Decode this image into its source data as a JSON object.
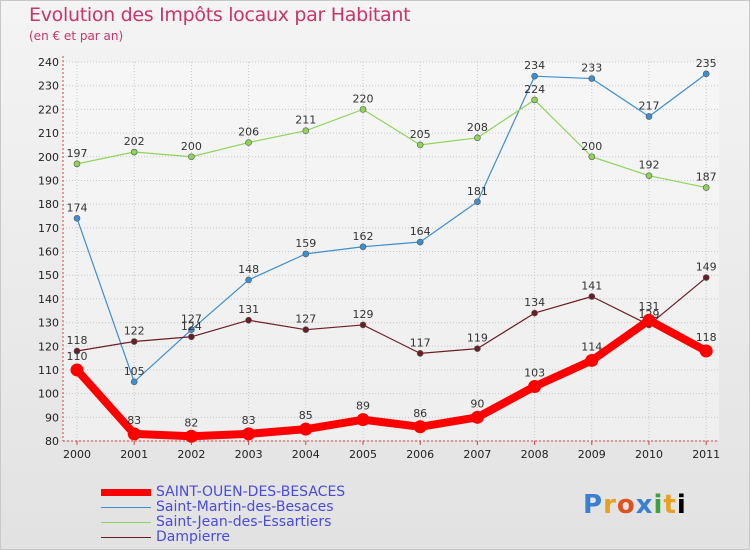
{
  "chart_data": {
    "type": "line",
    "title": "Evolution des Impôts locaux par Habitant",
    "subtitle": "(en € et par an)",
    "x": [
      "2000",
      "2001",
      "2002",
      "2003",
      "2004",
      "2005",
      "2006",
      "2007",
      "2008",
      "2009",
      "2010",
      "2011"
    ],
    "ylim": [
      80,
      240
    ],
    "yticks": [
      80,
      90,
      100,
      110,
      120,
      130,
      140,
      150,
      160,
      170,
      180,
      190,
      200,
      210,
      220,
      230,
      240
    ],
    "grid": true,
    "legend_position": "bottom-left",
    "series": [
      {
        "name": "SAINT-OUEN-DES-BESACES",
        "color": "#ff0000",
        "values": [
          110,
          83,
          82,
          83,
          85,
          89,
          86,
          90,
          103,
          114,
          131,
          118
        ]
      },
      {
        "name": "Saint-Martin-des-Besaces",
        "color": "#3d8fd1",
        "values": [
          174,
          105,
          127,
          148,
          159,
          162,
          164,
          181,
          234,
          233,
          217,
          235
        ]
      },
      {
        "name": "Saint-Jean-des-Essartiers",
        "color": "#8fd45a",
        "values": [
          197,
          202,
          200,
          206,
          211,
          220,
          205,
          208,
          224,
          200,
          192,
          187
        ]
      },
      {
        "name": "Dampierre",
        "color": "#6b1e24",
        "values": [
          118,
          122,
          124,
          131,
          127,
          129,
          117,
          119,
          134,
          141,
          129,
          149
        ]
      }
    ]
  },
  "branding": {
    "logo_text": "Proxiti",
    "logo_letters": [
      "P",
      "r",
      "o",
      "x",
      "i",
      "t",
      "i"
    ]
  }
}
